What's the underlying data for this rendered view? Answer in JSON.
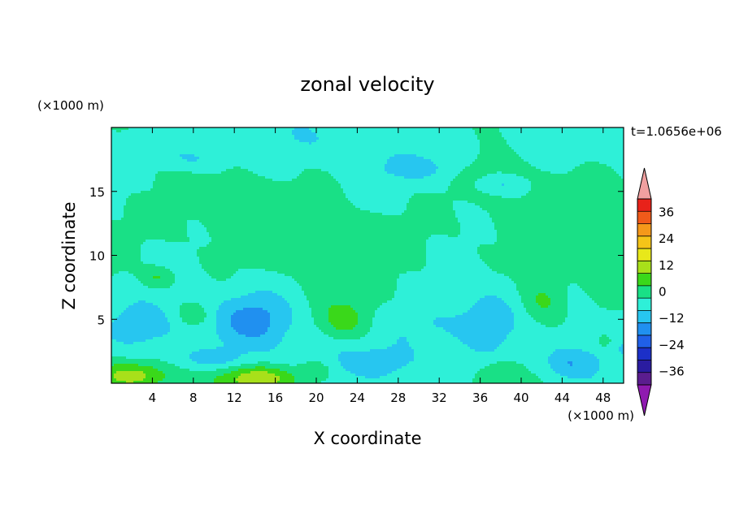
{
  "chart_data": {
    "type": "heatmap",
    "title": "zonal velocity",
    "xlabel": "X coordinate",
    "ylabel": "Z coordinate",
    "x_unit_label": "(×1000 m)",
    "y_unit_label": "(×1000 m)",
    "time_label": "t=1.0656e+06",
    "xlim": [
      0,
      50
    ],
    "ylim": [
      0,
      20
    ],
    "x_ticks": [
      4,
      8,
      12,
      16,
      20,
      24,
      28,
      32,
      36,
      40,
      44,
      48
    ],
    "y_ticks": [
      5,
      10,
      15
    ],
    "colorbar": {
      "levels": [
        -42,
        -36,
        -30,
        -24,
        -18,
        -12,
        -6,
        0,
        6,
        12,
        18,
        24,
        30,
        36,
        42
      ],
      "tick_labels": [
        "36",
        "24",
        "12",
        "0",
        "−12",
        "−24",
        "−36"
      ],
      "tick_values": [
        36,
        24,
        12,
        0,
        -12,
        -24,
        -36
      ],
      "colors": [
        "#5b1d8f",
        "#2a1ca0",
        "#1c30c8",
        "#2060e8",
        "#2090f0",
        "#27c6f0",
        "#2ef0d8",
        "#19e086",
        "#3ad81a",
        "#a8e01a",
        "#e8e81a",
        "#f5c418",
        "#f5981a",
        "#f05a1a",
        "#e8221a"
      ],
      "under_color": "#8f1ab0",
      "over_color": "#f0a0a0"
    },
    "features": [
      {
        "x": 2.0,
        "z": 0.6,
        "value": 14,
        "sx": 3.8,
        "sz": 1.0
      },
      {
        "x": 14.5,
        "z": 0.4,
        "value": 16,
        "sx": 4.5,
        "sz": 1.0
      },
      {
        "x": 3.0,
        "z": 4.5,
        "value": -10,
        "sx": 3.5,
        "sz": 2.0
      },
      {
        "x": 14.0,
        "z": 5.0,
        "value": -11,
        "sx": 3.5,
        "sz": 2.0
      },
      {
        "x": 22.8,
        "z": 4.8,
        "value": 10,
        "sx": 2.6,
        "sz": 1.6
      },
      {
        "x": 42.2,
        "z": 6.5,
        "value": 10,
        "sx": 2.2,
        "sz": 2.0
      },
      {
        "x": 8.0,
        "z": 5.3,
        "value": 7,
        "sx": 1.5,
        "sz": 0.8
      },
      {
        "x": 4.5,
        "z": 8.3,
        "value": 8,
        "sx": 1.6,
        "sz": 0.8
      },
      {
        "x": 36.5,
        "z": 5.0,
        "value": -8,
        "sx": 2.6,
        "sz": 2.5
      },
      {
        "x": 31.0,
        "z": 4.5,
        "value": -7,
        "sx": 4.0,
        "sz": 2.0
      },
      {
        "x": 27.0,
        "z": 1.5,
        "value": -7,
        "sx": 4.0,
        "sz": 1.5
      },
      {
        "x": 44.5,
        "z": 1.5,
        "value": -9,
        "sx": 2.5,
        "sz": 1.2
      },
      {
        "x": 48.2,
        "z": 3.3,
        "value": 8,
        "sx": 0.8,
        "sz": 0.6
      },
      {
        "x": 20.0,
        "z": 1.0,
        "value": 7,
        "sx": 1.5,
        "sz": 0.8
      },
      {
        "x": 38.0,
        "z": 1.0,
        "value": 6,
        "sx": 1.5,
        "sz": 0.8
      },
      {
        "x": 30.0,
        "z": 16.8,
        "value": -7,
        "sx": 4.0,
        "sz": 1.0
      },
      {
        "x": 8.0,
        "z": 17.5,
        "value": -7,
        "sx": 3.5,
        "sz": 1.0
      },
      {
        "x": 38.0,
        "z": 15.5,
        "value": -6,
        "sx": 2.5,
        "sz": 0.6
      },
      {
        "x": 10.0,
        "z": 1.8,
        "value": -6,
        "sx": 4.0,
        "sz": 0.8
      }
    ]
  }
}
